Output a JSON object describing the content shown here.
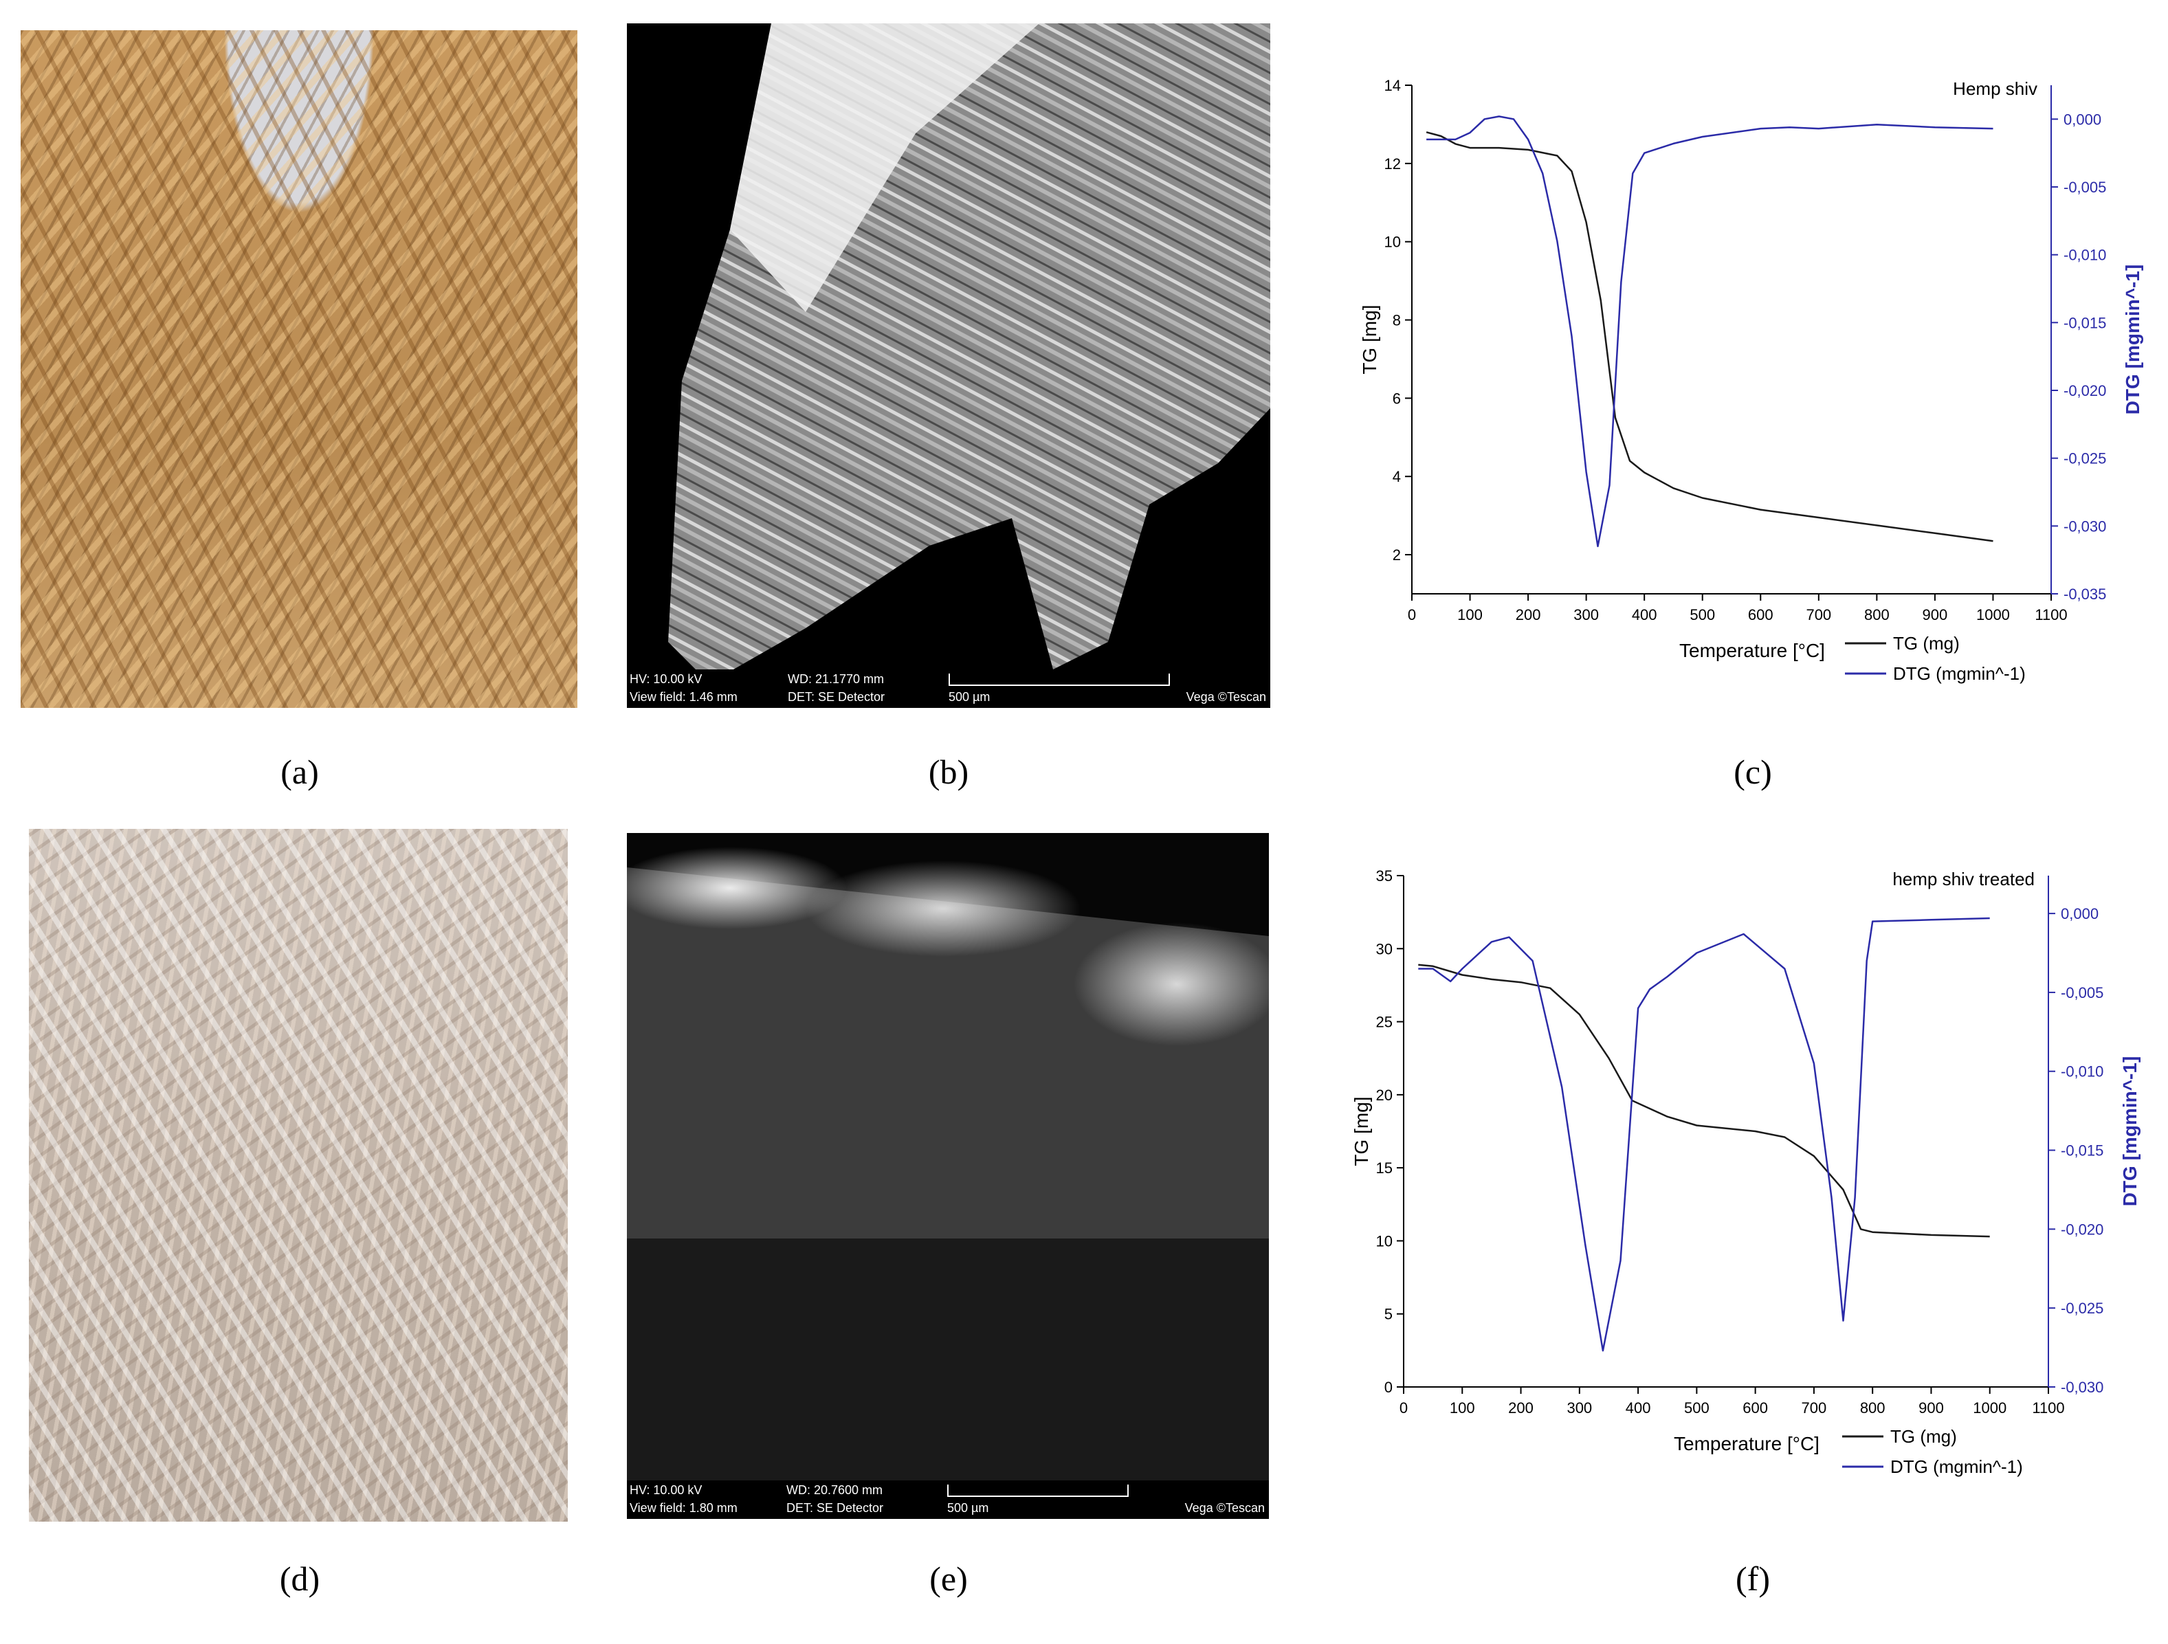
{
  "panels": {
    "labels": [
      "(a)",
      "(b)",
      "(c)",
      "(d)",
      "(e)",
      "(f)"
    ]
  },
  "sem": [
    {
      "hv": "HV:  10.00 kV",
      "view_field": "View field: 1.46 mm",
      "wd": "WD: 21.1770 mm",
      "det": "DET: SE Detector",
      "scale": "500 µm",
      "brand": "Vega ©Tescan"
    },
    {
      "hv": "HV:  10.00 kV",
      "view_field": "View field: 1.80 mm",
      "wd": "WD: 20.7600 mm",
      "det": "DET: SE Detector",
      "scale": "500 µm",
      "brand": "Vega ©Tescan"
    }
  ],
  "chart_data": [
    {
      "type": "line",
      "title": "Hemp shiv",
      "x_label": "Temperature [°C]",
      "y_label": "TG [mg]",
      "y2_label": "DTG [mgmin^-1]",
      "xlim": [
        0,
        1100
      ],
      "xticks": [
        0,
        100,
        200,
        300,
        400,
        500,
        600,
        700,
        800,
        900,
        1000,
        1100
      ],
      "ylim": [
        1,
        14
      ],
      "yticks": [
        2,
        4,
        6,
        8,
        10,
        12,
        14
      ],
      "y2lim": [
        -0.035,
        0.0025
      ],
      "y2ticks": [
        {
          "value": 0,
          "label": "0,000"
        },
        {
          "value": -0.005,
          "label": "-0,005"
        },
        {
          "value": -0.01,
          "label": "-0,010"
        },
        {
          "value": -0.015,
          "label": "-0,015"
        },
        {
          "value": -0.02,
          "label": "-0,020"
        },
        {
          "value": -0.025,
          "label": "-0,025"
        },
        {
          "value": -0.03,
          "label": "-0,030"
        },
        {
          "value": -0.035,
          "label": "-0,035"
        }
      ],
      "series": [
        {
          "name": "TG (mg)",
          "color": "#1a1a1a",
          "x": [
            25,
            50,
            75,
            100,
            150,
            200,
            250,
            275,
            300,
            325,
            350,
            375,
            400,
            450,
            500,
            600,
            700,
            800,
            900,
            1000
          ],
          "values": [
            12.8,
            12.7,
            12.5,
            12.4,
            12.4,
            12.35,
            12.2,
            11.8,
            10.5,
            8.5,
            5.5,
            4.4,
            4.1,
            3.7,
            3.45,
            3.15,
            2.95,
            2.75,
            2.55,
            2.35
          ]
        },
        {
          "name": "DTG (mgmin^-1)",
          "color": "#2b2ba8",
          "axis": "y2",
          "x": [
            25,
            75,
            100,
            125,
            150,
            175,
            200,
            225,
            250,
            275,
            300,
            320,
            340,
            360,
            380,
            400,
            450,
            500,
            600,
            650,
            700,
            800,
            900,
            1000
          ],
          "values": [
            -0.0015,
            -0.0015,
            -0.001,
            0.0,
            0.0002,
            0.0,
            -0.0015,
            -0.004,
            -0.009,
            -0.016,
            -0.026,
            -0.0315,
            -0.027,
            -0.012,
            -0.004,
            -0.0025,
            -0.0018,
            -0.0013,
            -0.0007,
            -0.0006,
            -0.0007,
            -0.0004,
            -0.0006,
            -0.0007
          ]
        }
      ]
    },
    {
      "type": "line",
      "title": "hemp shiv treated",
      "x_label": "Temperature [°C]",
      "y_label": "TG [mg]",
      "y2_label": "DTG [mgmin^-1]",
      "xlim": [
        0,
        1100
      ],
      "xticks": [
        0,
        100,
        200,
        300,
        400,
        500,
        600,
        700,
        800,
        900,
        1000,
        1100
      ],
      "ylim": [
        0,
        35
      ],
      "yticks": [
        0,
        5,
        10,
        15,
        20,
        25,
        30,
        35
      ],
      "y2lim": [
        -0.03,
        0.0024
      ],
      "y2ticks": [
        {
          "value": 0,
          "label": "0,000"
        },
        {
          "value": -0.005,
          "label": "-0,005"
        },
        {
          "value": -0.01,
          "label": "-0,010"
        },
        {
          "value": -0.015,
          "label": "-0,015"
        },
        {
          "value": -0.02,
          "label": "-0,020"
        },
        {
          "value": -0.025,
          "label": "-0,025"
        },
        {
          "value": -0.03,
          "label": "-0,030"
        }
      ],
      "series": [
        {
          "name": "TG (mg)",
          "color": "#1a1a1a",
          "x": [
            25,
            50,
            100,
            150,
            200,
            250,
            300,
            350,
            390,
            450,
            500,
            600,
            650,
            700,
            750,
            780,
            800,
            900,
            1000
          ],
          "values": [
            28.9,
            28.8,
            28.2,
            27.9,
            27.7,
            27.3,
            25.5,
            22.5,
            19.6,
            18.5,
            17.9,
            17.5,
            17.1,
            15.8,
            13.5,
            10.8,
            10.6,
            10.4,
            10.3
          ]
        },
        {
          "name": "DTG (mgmin^-1)",
          "color": "#2b2ba8",
          "axis": "y2",
          "x": [
            25,
            50,
            80,
            100,
            150,
            180,
            220,
            270,
            310,
            340,
            370,
            400,
            420,
            450,
            500,
            580,
            650,
            700,
            730,
            750,
            770,
            790,
            800,
            900,
            1000
          ],
          "values": [
            -0.0035,
            -0.0035,
            -0.0043,
            -0.0035,
            -0.0018,
            -0.0015,
            -0.003,
            -0.011,
            -0.021,
            -0.0277,
            -0.022,
            -0.006,
            -0.0048,
            -0.004,
            -0.0025,
            -0.0013,
            -0.0035,
            -0.0095,
            -0.018,
            -0.0258,
            -0.018,
            -0.003,
            -0.0005,
            -0.0004,
            -0.0003
          ]
        }
      ]
    }
  ]
}
